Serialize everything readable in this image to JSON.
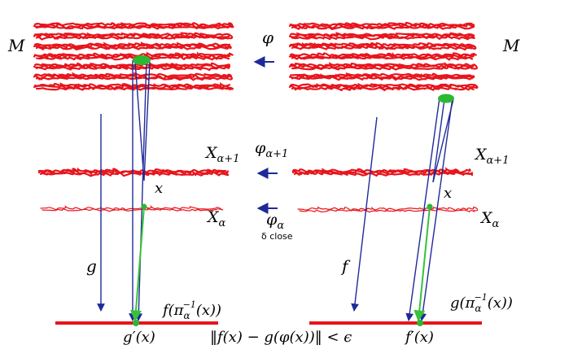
{
  "labels": {
    "M_left": "M",
    "M_right": "M",
    "phi": "φ",
    "phi_alpha1_base": "φ",
    "phi_alpha1_sub": "α+1",
    "X_alpha1_left_base": "X",
    "X_alpha1_left_sub": "α+1",
    "X_alpha1_right_base": "X",
    "X_alpha1_right_sub": "α+1",
    "x_left": "x",
    "x_right": "x",
    "X_alpha_left_base": "X",
    "X_alpha_left_sub": "α",
    "X_alpha_right_base": "X",
    "X_alpha_right_sub": "α",
    "phi_alpha_base": "φ",
    "phi_alpha_sub": "α",
    "delta_close": "δ close",
    "g": "g",
    "f": "f",
    "f_pi_left": "f(π",
    "f_pi_sup": "−1",
    "f_pi_sub": "α",
    "f_pi_right": "(x))",
    "g_pi_left": "g(π",
    "g_pi_sup": "−1",
    "g_pi_sub": "α",
    "g_pi_right": "(x))",
    "g_prime_x": "g′(x)",
    "f_prime_x": "f′(x)",
    "bottom_formula": "‖f(x) − g(φ(x))‖ < ϵ"
  },
  "colors": {
    "space_red": "#e8141c",
    "map_blue": "#1f2a99",
    "point_green": "#2bb833",
    "green_line": "#37c23a"
  }
}
